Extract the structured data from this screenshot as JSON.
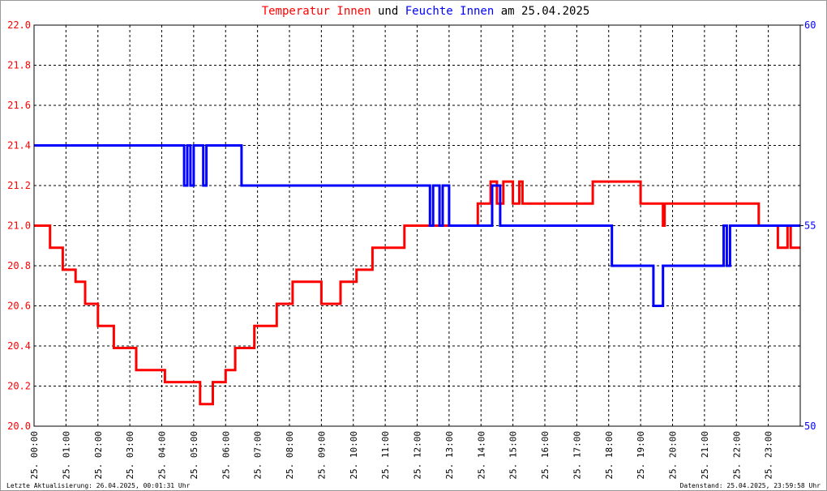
{
  "chart_data": {
    "type": "line",
    "title_connector": "und",
    "title_date": "am 25.04.2025",
    "footer_left": "Letzte Aktualisierung: 26.04.2025, 00:01:31 Uhr",
    "footer_right": "Datenstand: 25.04.2025, 23:59:58 Uhr",
    "grid": true,
    "xlim": [
      0,
      24
    ],
    "xticks": [
      {
        "value": 0,
        "label": "25. 00:00"
      },
      {
        "value": 1,
        "label": "25. 01:00"
      },
      {
        "value": 2,
        "label": "25. 02:00"
      },
      {
        "value": 3,
        "label": "25. 03:00"
      },
      {
        "value": 4,
        "label": "25. 04:00"
      },
      {
        "value": 5,
        "label": "25. 05:00"
      },
      {
        "value": 6,
        "label": "25. 06:00"
      },
      {
        "value": 7,
        "label": "25. 07:00"
      },
      {
        "value": 8,
        "label": "25. 08:00"
      },
      {
        "value": 9,
        "label": "25. 09:00"
      },
      {
        "value": 10,
        "label": "25. 10:00"
      },
      {
        "value": 11,
        "label": "25. 11:00"
      },
      {
        "value": 12,
        "label": "25. 12:00"
      },
      {
        "value": 13,
        "label": "25. 13:00"
      },
      {
        "value": 14,
        "label": "25. 14:00"
      },
      {
        "value": 15,
        "label": "25. 15:00"
      },
      {
        "value": 16,
        "label": "25. 16:00"
      },
      {
        "value": 17,
        "label": "25. 17:00"
      },
      {
        "value": 18,
        "label": "25. 18:00"
      },
      {
        "value": 19,
        "label": "25. 19:00"
      },
      {
        "value": 20,
        "label": "25. 20:00"
      },
      {
        "value": 21,
        "label": "25. 21:00"
      },
      {
        "value": 22,
        "label": "25. 22:00"
      },
      {
        "value": 23,
        "label": "25. 23:00"
      }
    ],
    "ylim": [
      20,
      22
    ],
    "yticks": [
      {
        "value": 20,
        "label": "20.0"
      },
      20.2,
      20.4,
      20.6,
      20.8,
      {
        "value": 21,
        "label": "21.0"
      },
      21.2,
      21.4,
      21.6,
      21.8,
      {
        "value": 22,
        "label": "22.0"
      }
    ],
    "y2lim": [
      50,
      60
    ],
    "y2ticks": [
      50,
      55,
      60
    ],
    "series": [
      {
        "name": "Temperatur Innen",
        "color": "#ff0000",
        "x": [
          0,
          0.5,
          0.5,
          0.9,
          0.9,
          1.3,
          1.3,
          1.6,
          1.6,
          2.0,
          2.0,
          2.5,
          2.5,
          3.2,
          3.2,
          4.1,
          4.1,
          5.2,
          5.2,
          5.6,
          5.6,
          6.0,
          6.0,
          6.3,
          6.3,
          6.9,
          6.9,
          7.6,
          7.6,
          8.1,
          8.1,
          9.0,
          9.0,
          9.6,
          9.6,
          10.1,
          10.1,
          10.6,
          10.6,
          11.6,
          11.6,
          13.9,
          13.9,
          14.3,
          14.3,
          14.5,
          14.5,
          14.7,
          14.7,
          15.0,
          15.0,
          15.2,
          15.2,
          15.3,
          15.3,
          17.5,
          17.5,
          19.0,
          19.0,
          19.7,
          19.7,
          19.75,
          19.75,
          22.7,
          22.7,
          23.3,
          23.3,
          23.6,
          23.6,
          23.7,
          23.7,
          24
        ],
        "values": [
          21.0,
          21.0,
          20.89,
          20.89,
          20.78,
          20.78,
          20.72,
          20.72,
          20.61,
          20.61,
          20.5,
          20.5,
          20.39,
          20.39,
          20.28,
          20.28,
          20.22,
          20.22,
          20.11,
          20.11,
          20.22,
          20.22,
          20.28,
          20.28,
          20.39,
          20.39,
          20.5,
          20.5,
          20.61,
          20.61,
          20.72,
          20.72,
          20.61,
          20.61,
          20.72,
          20.72,
          20.78,
          20.78,
          20.89,
          20.89,
          21.0,
          21.0,
          21.11,
          21.11,
          21.22,
          21.22,
          21.11,
          21.11,
          21.22,
          21.22,
          21.11,
          21.11,
          21.22,
          21.22,
          21.11,
          21.11,
          21.22,
          21.22,
          21.11,
          21.11,
          21.0,
          21.0,
          21.11,
          21.11,
          21.0,
          21.0,
          20.89,
          20.89,
          21.0,
          21.0,
          20.89,
          20.89
        ]
      },
      {
        "name": "Feuchte Innen",
        "color": "#0000ff",
        "axis": "y2",
        "x": [
          0,
          4.7,
          4.7,
          4.8,
          4.8,
          4.9,
          4.9,
          5.0,
          5.0,
          5.3,
          5.3,
          5.4,
          5.4,
          6.5,
          6.5,
          12.4,
          12.4,
          12.5,
          12.5,
          12.7,
          12.7,
          12.8,
          12.8,
          13.0,
          13.0,
          14.35,
          14.35,
          14.6,
          14.6,
          18.1,
          18.1,
          19.4,
          19.4,
          19.7,
          19.7,
          21.6,
          21.6,
          21.7,
          21.7,
          21.8,
          21.8,
          24
        ],
        "values": [
          57,
          57,
          56,
          56,
          57,
          57,
          56,
          56,
          57,
          57,
          56,
          56,
          57,
          57,
          56,
          56,
          55,
          55,
          56,
          56,
          55,
          55,
          56,
          56,
          55,
          55,
          56,
          56,
          55,
          55,
          54,
          54,
          53,
          53,
          54,
          54,
          55,
          55,
          54,
          54,
          55,
          55
        ]
      }
    ]
  }
}
